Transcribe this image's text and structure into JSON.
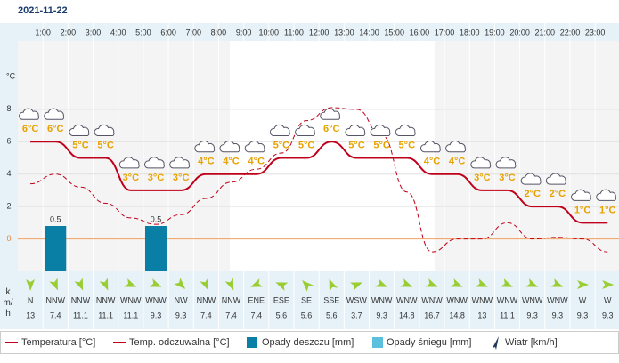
{
  "chart_data": {
    "type": "line",
    "title": "2021-11-22",
    "ylabel": "°C",
    "hour_labels": [
      "1:00",
      "2:00",
      "3:00",
      "4:00",
      "5:00",
      "6:00",
      "7:00",
      "8:00",
      "9:00",
      "10:00",
      "11:00",
      "12:00",
      "13:00",
      "14:00",
      "15:00",
      "16:00",
      "17:00",
      "18:00",
      "19:00",
      "20:00",
      "21:00",
      "22:00",
      "23:00"
    ],
    "ylim": [
      -2,
      12
    ],
    "yticks": [
      0,
      2,
      4,
      6,
      8
    ],
    "y2lim": [
      0,
      2.5
    ],
    "series": [
      {
        "name": "Temperatura [°C]",
        "color": "#c0001a",
        "values": [
          6,
          6,
          5,
          5,
          3,
          3,
          3,
          4,
          4,
          4,
          5,
          5,
          6,
          5,
          5,
          5,
          4,
          4,
          3,
          3,
          2,
          2,
          1,
          1
        ],
        "value_labels": [
          "6°C",
          "6°C",
          "5°C",
          "5°C",
          "3°C",
          "3°C",
          "3°C",
          "4°C",
          "4°C",
          "4°C",
          "5°C",
          "5°C",
          "6°C",
          "5°C",
          "5°C",
          "5°C",
          "4°C",
          "4°C",
          "3°C",
          "3°C",
          "2°C",
          "2°C",
          "1°C",
          "1°C"
        ]
      },
      {
        "name": "Temp. odczuwalna [°C]",
        "color": "#c0001a",
        "values": [
          3.4,
          4,
          3.2,
          2.2,
          1.3,
          0.9,
          1.5,
          2.5,
          3.5,
          4.3,
          5.3,
          7.3,
          8.1,
          8,
          6.4,
          2.9,
          -0.8,
          0,
          0,
          1,
          0,
          0.1,
          0,
          -0.8
        ]
      },
      {
        "name": "Opady deszczu [mm]",
        "color": "#0a7fa5",
        "axis": "y2",
        "values": [
          0,
          0.5,
          0,
          0,
          0,
          0.5,
          0,
          0,
          0,
          0,
          0,
          0,
          0,
          0,
          0,
          0,
          0,
          0,
          0,
          0,
          0,
          0,
          0,
          0
        ],
        "value_labels": [
          null,
          "0.5",
          null,
          null,
          null,
          "0.5",
          null,
          null,
          null,
          null,
          null,
          null,
          null,
          null,
          null,
          null,
          null,
          null,
          null,
          null,
          null,
          null,
          null,
          null
        ]
      },
      {
        "name": "Opady śniegu [mm]",
        "color": "#5bc0de",
        "axis": "y2",
        "values": [
          0,
          0,
          0,
          0,
          0,
          0,
          0,
          0,
          0,
          0,
          0,
          0,
          0,
          0,
          0,
          0,
          0,
          0,
          0,
          0,
          0,
          0,
          0,
          0
        ]
      }
    ],
    "wind": {
      "name": "Wiatr [km/h]",
      "unit_label": "km/h",
      "color": "#9acd32",
      "directions": [
        "N",
        "NNW",
        "NNW",
        "NNW",
        "WNW",
        "WNW",
        "NW",
        "NNW",
        "NNW",
        "ENE",
        "ESE",
        "SE",
        "SSE",
        "WSW",
        "WNW",
        "WNW",
        "WNW",
        "WNW",
        "WNW",
        "WNW",
        "WNW",
        "WNW",
        "W",
        "W"
      ],
      "speeds": [
        13,
        7.4,
        11.1,
        11.1,
        11.1,
        9.3,
        9.3,
        7.4,
        7.4,
        7.4,
        5.6,
        5.6,
        5.6,
        3.7,
        9.3,
        14.8,
        16.7,
        14.8,
        13,
        11.1,
        9.3,
        9.3,
        9.3,
        9.3
      ]
    }
  }
}
